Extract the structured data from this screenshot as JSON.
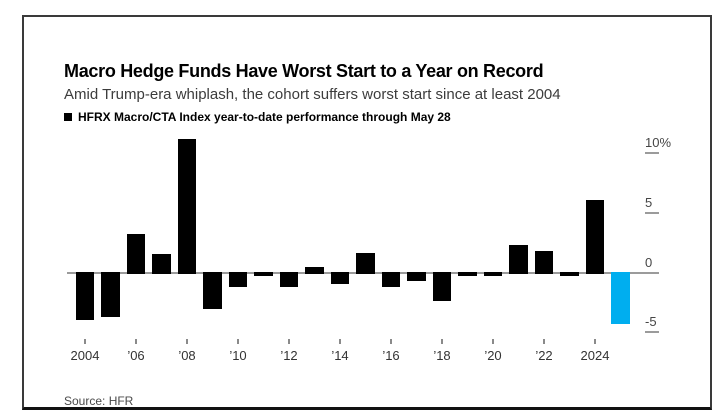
{
  "source_note": "Source: HFR",
  "chart_data": {
    "type": "bar",
    "title": "Macro Hedge Funds Have Worst Start to a Year on Record",
    "subtitle": "Amid Trump-era whiplash, the cohort suffers worst start since at least 2004",
    "series_label": "HFRX Macro/CTA Index year-to-date performance through May 28",
    "unit": "%",
    "categories": [
      2004,
      2005,
      2006,
      2007,
      2008,
      2009,
      2010,
      2011,
      2012,
      2013,
      2014,
      2015,
      2016,
      2017,
      2018,
      2019,
      2020,
      2021,
      2022,
      2023,
      2024,
      2025
    ],
    "values": [
      -3.9,
      -3.6,
      3.2,
      1.5,
      11.1,
      -3.0,
      -1.1,
      -0.2,
      -1.1,
      0.4,
      -0.9,
      1.6,
      -1.1,
      -0.6,
      -2.3,
      -0.2,
      -0.2,
      2.2,
      1.7,
      -0.2,
      6.0,
      -4.2
    ],
    "bar_color": "#000000",
    "highlight": {
      "category": 2025,
      "color": "#00AEEF"
    },
    "ylim": [
      -6.3,
      12.2
    ],
    "yticks": [
      {
        "value": 10,
        "label": "10%"
      },
      {
        "value": 5,
        "label": "5"
      },
      {
        "value": 0,
        "label": "0"
      },
      {
        "value": -5,
        "label": "-5"
      }
    ],
    "xticks": [
      {
        "index": 0,
        "label": "2004"
      },
      {
        "index": 2,
        "label": "’06"
      },
      {
        "index": 4,
        "label": "’08"
      },
      {
        "index": 6,
        "label": "’10"
      },
      {
        "index": 8,
        "label": "’12"
      },
      {
        "index": 10,
        "label": "’14"
      },
      {
        "index": 12,
        "label": "’16"
      },
      {
        "index": 14,
        "label": "’18"
      },
      {
        "index": 16,
        "label": "’20"
      },
      {
        "index": 18,
        "label": "’22"
      },
      {
        "index": 20,
        "label": "2024"
      }
    ],
    "grid": "zero-line-only",
    "legend_position": "top-left",
    "axis_line_color": "#9b9b9b"
  }
}
